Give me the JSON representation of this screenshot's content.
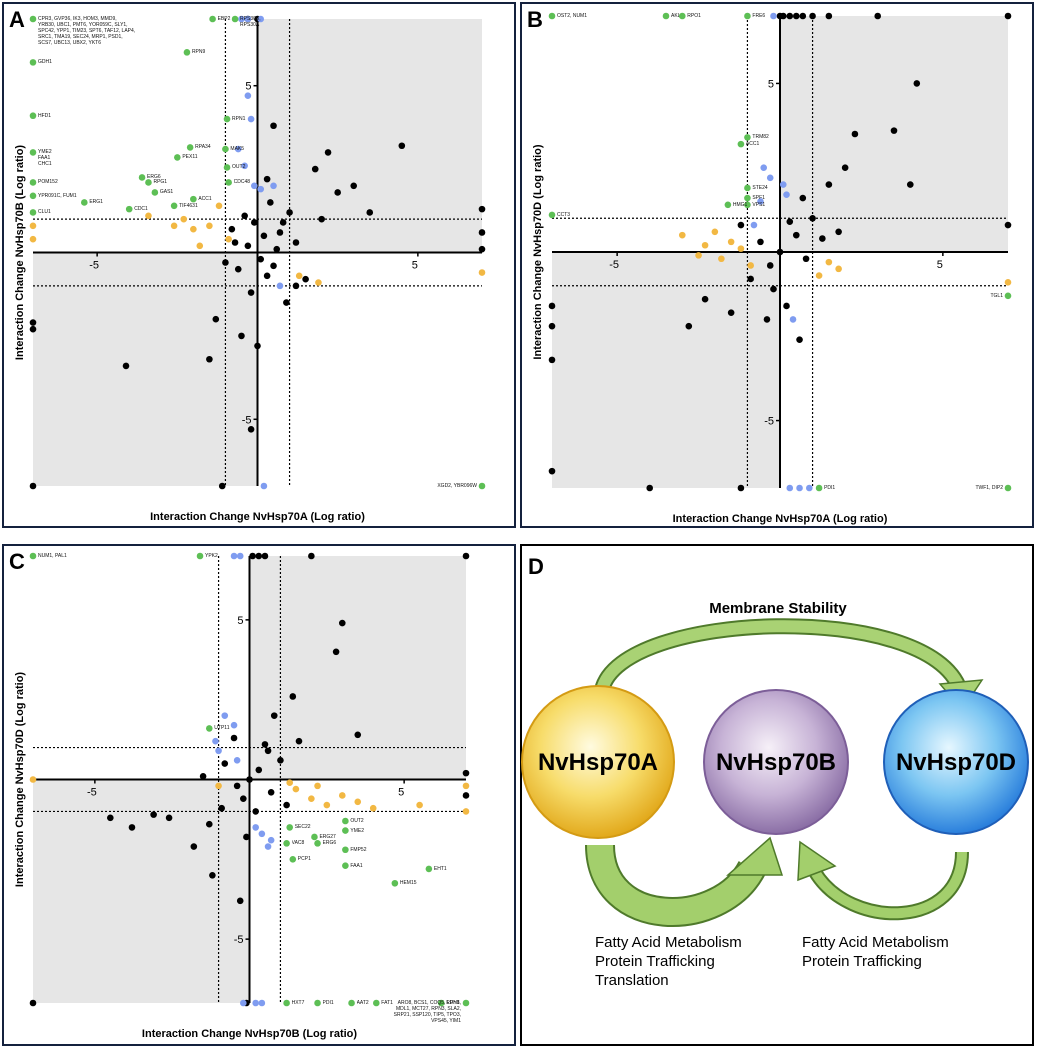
{
  "chart_data": [
    {
      "type": "scatter",
      "panel_label": "A",
      "x_label": "Interaction Change NvHsp70A (Log ratio)",
      "y_label": "Interaction Change NvHsp70B (Log ratio)",
      "xlim": [
        -7,
        7
      ],
      "ylim": [
        -7,
        7
      ],
      "xticks": [
        -5,
        5
      ],
      "yticks": [
        -5,
        5
      ],
      "threshold_lines": [
        -1,
        1
      ],
      "shaded_quadrants": [
        "top-right",
        "bottom-left"
      ],
      "series": [
        {
          "color": "#000000",
          "x": [
            0.2,
            -0.3,
            0.5,
            0.8,
            -0.6,
            1.2,
            -0.2,
            0.4,
            1.5,
            -0.8,
            0.1,
            2.0,
            -1.0,
            0.6,
            -0.4,
            0.9,
            1.8,
            2.5,
            3.5,
            4.5,
            2.2,
            3.0,
            0.3,
            -0.5,
            -1.5,
            -1.3,
            0.0,
            -4.1,
            -7,
            -7,
            -7,
            -1.1,
            7,
            7,
            7,
            1.2,
            0.7,
            -0.1,
            0.3,
            1.0,
            -0.7,
            0.5,
            -0.2,
            -0.3,
            0
          ],
          "values": [
            0.5,
            0.2,
            -0.4,
            0.9,
            -0.5,
            0.3,
            -1.2,
            1.5,
            -0.8,
            0.7,
            -0.2,
            1.0,
            -0.3,
            0.1,
            1.1,
            -1.5,
            2.5,
            1.8,
            1.2,
            3.2,
            3.0,
            2.0,
            2.2,
            -2.5,
            -3.2,
            -2.0,
            -2.8,
            -3.4,
            -2.1,
            -2.3,
            -7,
            -7,
            1.3,
            0.6,
            0.1,
            -1.0,
            0.6,
            0.9,
            -0.7,
            1.2,
            0.3,
            3.8,
            -5.3,
            7,
            7
          ]
        },
        {
          "color": "#7f9cf0",
          "x": [
            -0.5,
            -0.3,
            0.1,
            0.2,
            -0.3,
            -0.4,
            -0.6,
            -0.2,
            -0.1,
            0.1,
            0.5,
            0.7
          ],
          "values": [
            7,
            7,
            7,
            -7,
            4.7,
            2.6,
            3.1,
            4.0,
            2.0,
            1.9,
            2.0,
            -1.0
          ]
        },
        {
          "color": "#f2b843",
          "x": [
            -7,
            -7,
            -2.3,
            -2.0,
            -1.8,
            -1.5,
            -1.2,
            -3.4,
            -0.9,
            7,
            1.3,
            1.9,
            -2.6
          ],
          "values": [
            0.8,
            0.4,
            1.0,
            0.7,
            0.2,
            0.8,
            1.4,
            1.1,
            0.4,
            -0.6,
            -0.7,
            -0.9,
            0.8
          ]
        },
        {
          "color": "#5dbf55",
          "x": [
            -7,
            -7,
            -7,
            -7,
            -7,
            -7,
            -7,
            -5.4,
            -4.0,
            -3.2,
            -3.4,
            -3.6,
            -2.2,
            -2.1,
            -2.5,
            -1.0,
            -0.95,
            -0.9,
            -0.95,
            -1.4,
            -0.7,
            -2.6,
            -2.0,
            7
          ],
          "values": [
            7,
            5.7,
            4.1,
            3.0,
            2.1,
            1.7,
            1.2,
            1.5,
            1.3,
            1.8,
            2.1,
            2.25,
            6.0,
            3.15,
            2.85,
            3.1,
            2.55,
            2.1,
            4.0,
            7.0,
            7.0,
            1.4,
            1.6,
            -7
          ],
          "point_labels": [
            "CPR3, GVP36, IK3, HOM3, MMD9,\nYRB30, UBC1, PMT6, YOR059C, SLY1,\nSPC42, YPP1, TIM23, SPT6, TAF12, LAP4,\nSRC1, TMA19, SEC24, MRP1, PSD1,\nSCS7, UBC13, UBX2, YKT6",
            "GDH1",
            "HFD1",
            "YME2\nFAA1\nCHC1",
            "POM152",
            "YPR091C, FUM1",
            "CLU1",
            "ERG1",
            "CDC1",
            "GAS1",
            "RPG1",
            "ERG6",
            "RPN9",
            "RPA34",
            "PEX11",
            "MAK5",
            "OUT2",
            "CDC48",
            "RPN1",
            "EBP2",
            "RPS30B,\nRPS30A",
            "TIF4631",
            "ACC1",
            "XGD2, YBR096W"
          ]
        }
      ]
    },
    {
      "type": "scatter",
      "panel_label": "B",
      "x_label": "Interaction Change NvHsp70A (Log ratio)",
      "y_label": "Interaction Change NvHsp70D (Log ratio)",
      "xlim": [
        -7,
        7
      ],
      "ylim": [
        -7,
        7
      ],
      "xticks": [
        -5,
        5
      ],
      "yticks": [
        -5,
        5
      ],
      "threshold_lines": [
        -1,
        1
      ],
      "shaded_quadrants": [
        "top-right",
        "bottom-left"
      ],
      "series": [
        {
          "color": "#000000",
          "x": [
            0,
            0.1,
            0.3,
            0.5,
            0.7,
            1.0,
            1.5,
            3.0,
            7,
            -4.0,
            -1.2,
            7,
            4.2,
            3.5,
            4.0,
            2.3,
            2.0,
            1.5,
            1.0,
            0.5,
            0,
            -0.3,
            0.8,
            -0.6,
            1.3,
            -0.2,
            0.2,
            -0.4,
            -1.5,
            -2.3,
            -2.8,
            -7,
            -7,
            -7,
            -7,
            0.7,
            1.8,
            -0.9,
            0.3,
            -1.2,
            0.6
          ],
          "values": [
            7,
            7,
            7,
            7,
            7,
            7,
            7,
            7,
            7,
            -7,
            -7,
            0.8,
            5.0,
            3.6,
            2.0,
            3.5,
            2.5,
            2.0,
            1.0,
            0.5,
            0,
            -0.4,
            -0.2,
            0.3,
            0.4,
            -1.1,
            -1.6,
            -2.0,
            -1.8,
            -1.4,
            -2.2,
            -1.6,
            -2.2,
            -3.2,
            -6.5,
            1.6,
            0.6,
            -0.8,
            0.9,
            0.8,
            -2.6
          ]
        },
        {
          "color": "#7f9cf0",
          "x": [
            -0.2,
            0.6,
            0.3,
            0.9,
            -0.5,
            -0.3,
            0.1,
            -0.6,
            0.4,
            0.2,
            -0.8
          ],
          "values": [
            7,
            -7,
            -7,
            -7,
            2.5,
            2.2,
            2.0,
            1.5,
            -2.0,
            1.7,
            0.8
          ]
        },
        {
          "color": "#f2b843",
          "x": [
            -1.5,
            -2.0,
            -2.5,
            -1.2,
            -3.0,
            -1.8,
            1.5,
            1.8,
            1.2,
            7,
            -0.9,
            -2.3
          ],
          "values": [
            0.3,
            0.6,
            -0.1,
            0.1,
            0.5,
            -0.2,
            -0.3,
            -0.5,
            -0.7,
            -0.9,
            -0.4,
            0.2
          ]
        },
        {
          "color": "#5dbf55",
          "x": [
            -7,
            -3.5,
            -3.0,
            -1.0,
            -1.0,
            -1.2,
            -1.0,
            -1.0,
            -1.0,
            -1.6,
            -7,
            7,
            1.2,
            7
          ],
          "values": [
            7,
            7,
            7,
            7,
            3.4,
            3.2,
            1.9,
            1.6,
            1.4,
            1.4,
            1.1,
            -1.3,
            -7,
            -7
          ],
          "point_labels": [
            "OST2, NUM1",
            "AKL1",
            "RPO1",
            "FRE6",
            "TRM82",
            "ACC1",
            "STE24",
            "SPF1",
            "VPS1",
            "HMG1",
            "CCT3",
            "TGL1",
            "PDI1",
            "TWF1, DIP2"
          ]
        }
      ]
    },
    {
      "type": "scatter",
      "panel_label": "C",
      "x_label": "Interaction Change NvHsp70B (Log ratio)",
      "y_label": "Interaction Change NvHsp70D (Log ratio)",
      "xlim": [
        -7,
        7
      ],
      "ylim": [
        -7,
        7
      ],
      "xticks": [
        -5,
        5
      ],
      "yticks": [
        -5,
        5
      ],
      "threshold_lines": [
        -1,
        1
      ],
      "shaded_quadrants": [
        "top-right",
        "bottom-left"
      ],
      "series": [
        {
          "color": "#000000",
          "x": [
            0.1,
            0.3,
            0.5,
            2.0,
            7,
            -7,
            -0.1,
            3.0,
            2.8,
            3.5,
            1.4,
            0.8,
            0.5,
            0,
            0.3,
            -0.4,
            0.7,
            -0.8,
            1.0,
            -0.2,
            0.2,
            -0.5,
            -3.1,
            -4.5,
            -3.8,
            -1.2,
            -1.8,
            -2.6,
            -1.3,
            -0.3,
            -0.1,
            7,
            7,
            1.6,
            1.2,
            -0.9,
            0.6,
            -1.5
          ],
          "values": [
            7,
            7,
            7,
            7,
            7,
            -7,
            -7,
            4.9,
            4.0,
            1.4,
            2.6,
            2.0,
            1.1,
            0,
            0.3,
            -0.2,
            -0.4,
            0.5,
            0.6,
            -0.6,
            -1.0,
            1.3,
            -1.1,
            -1.2,
            -1.5,
            -3.0,
            -2.1,
            -1.2,
            -1.4,
            -3.8,
            -1.8,
            -0.5,
            0.2,
            1.2,
            -0.8,
            -0.9,
            0.9,
            0.1
          ]
        },
        {
          "color": "#7f9cf0",
          "x": [
            -0.5,
            -0.3,
            -0.2,
            0.2,
            0.4,
            -0.8,
            -0.5,
            -1.0,
            -0.4,
            0.4,
            0.7,
            0.2,
            0.6,
            -1.1
          ],
          "values": [
            7,
            7,
            -7,
            -7,
            -7,
            2.0,
            1.7,
            0.9,
            0.6,
            -1.7,
            -1.9,
            -1.5,
            -2.1,
            1.2
          ]
        },
        {
          "color": "#f2b843",
          "x": [
            -7,
            1.5,
            2.0,
            2.5,
            3.0,
            3.5,
            4.0,
            5.5,
            7,
            1.3,
            2.2,
            7,
            -1.0
          ],
          "values": [
            0,
            -0.3,
            -0.6,
            -0.8,
            -0.5,
            -0.7,
            -0.9,
            -0.8,
            -1.0,
            -0.1,
            -0.2,
            -0.2,
            -0.2
          ]
        },
        {
          "color": "#5dbf55",
          "x": [
            -7,
            -1.6,
            -1.3,
            1.3,
            2.1,
            3.1,
            3.1,
            3.1,
            2.2,
            1.2,
            1.4,
            3.1,
            5.8,
            4.7,
            1.2,
            2.2,
            3.3,
            4.1,
            6.2,
            7
          ],
          "values": [
            7,
            7,
            1.6,
            -1.5,
            -1.8,
            -1.3,
            -1.6,
            -2.2,
            -2.0,
            -2.0,
            -2.5,
            -2.7,
            -2.8,
            -3.25,
            -7,
            -7,
            -7,
            -7,
            -7,
            -7
          ],
          "point_labels": [
            "NUM1, PAL1",
            "YPK2",
            "UTP11",
            "SEC22",
            "ERG27",
            "OUT2",
            "YME2",
            "FMP52",
            "ERG6",
            "VAC8",
            "PCP1",
            "FAA1",
            "EHT1",
            "HEM15",
            "HXT7",
            "PDI1",
            "AAT2",
            "FAT1",
            "RPN8",
            "ARO8, BCS1, COQ5, LDH1,\nMDL1, MCT27, RPN3, SLA2,\nSRP21, SSP120, TIP5, TPO3,\nVPS45, YIM1"
          ]
        }
      ]
    }
  ],
  "diagram": {
    "panel_label": "D",
    "top_label": "Membrane Stability",
    "nodes": [
      "NvHsp70A",
      "NvHsp70B",
      "NvHsp70D"
    ],
    "bottom_labels": [
      [
        "Fatty Acid Metabolism",
        "Protein Trafficking",
        "Translation"
      ],
      [
        "Fatty Acid Metabolism",
        "Protein Trafficking"
      ]
    ]
  }
}
